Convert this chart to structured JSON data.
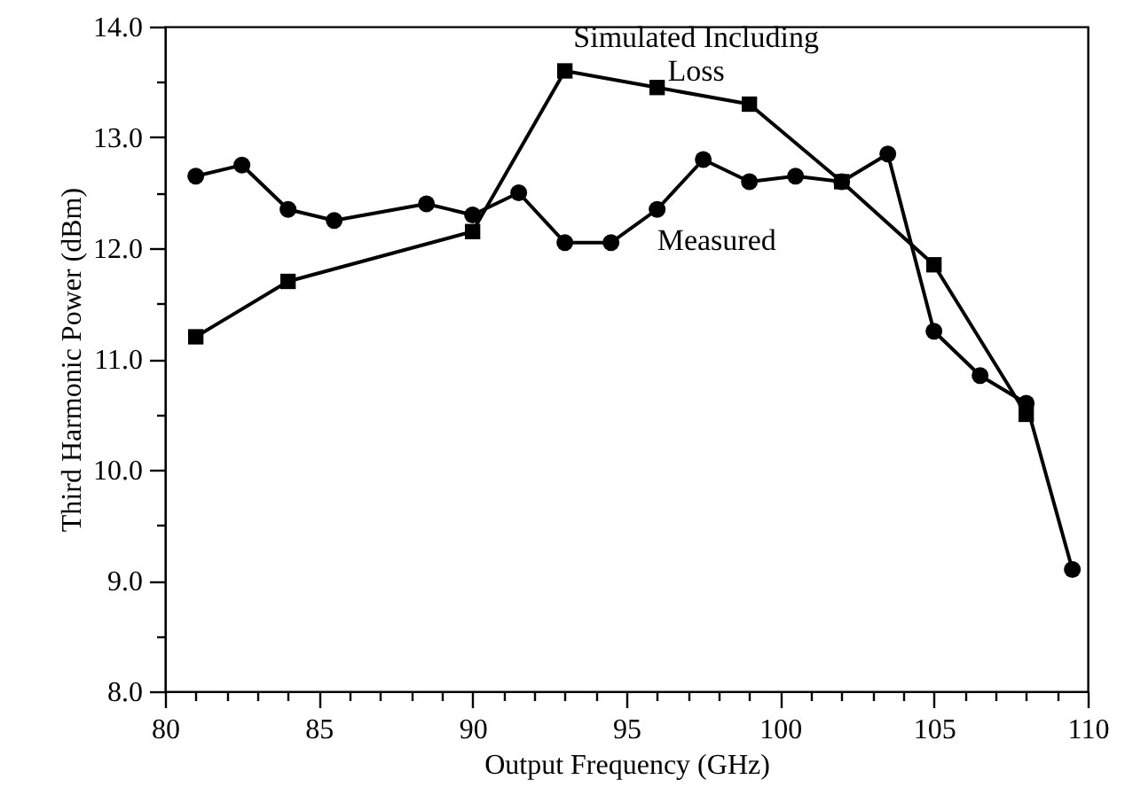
{
  "chart_data": {
    "type": "line",
    "xlabel": "Output Frequency (GHz)",
    "ylabel": "Third Harmonic Power (dBm)",
    "xlim": [
      80,
      110
    ],
    "ylim": [
      8,
      14
    ],
    "xticks": [
      80,
      {
        "value": 81,
        "label": null
      },
      {
        "value": 82,
        "label": null
      },
      {
        "value": 83,
        "label": null
      },
      {
        "value": 84,
        "label": null
      },
      85,
      {
        "value": 86,
        "label": null
      },
      {
        "value": 87,
        "label": null
      },
      {
        "value": 88,
        "label": null
      },
      {
        "value": 89,
        "label": null
      },
      90,
      {
        "value": 91,
        "label": null
      },
      {
        "value": 92,
        "label": null
      },
      {
        "value": 93,
        "label": null
      },
      {
        "value": 94,
        "label": null
      },
      95,
      {
        "value": 96,
        "label": null
      },
      {
        "value": 97,
        "label": null
      },
      {
        "value": 98,
        "label": null
      },
      {
        "value": 99,
        "label": null
      },
      100,
      {
        "value": 101,
        "label": null
      },
      {
        "value": 102,
        "label": null
      },
      {
        "value": 103,
        "label": null
      },
      {
        "value": 104,
        "label": null
      },
      105,
      {
        "value": 106,
        "label": null
      },
      {
        "value": 107,
        "label": null
      },
      {
        "value": 108,
        "label": null
      },
      {
        "value": 109,
        "label": null
      },
      110
    ],
    "yticks": [
      {
        "value": 8,
        "label": "8.0"
      },
      {
        "value": 8.5,
        "label": null
      },
      {
        "value": 9,
        "label": "9.0"
      },
      {
        "value": 9.5,
        "label": null
      },
      {
        "value": 10,
        "label": "10.0"
      },
      {
        "value": 10.5,
        "label": null
      },
      {
        "value": 11,
        "label": "11.0"
      },
      {
        "value": 11.5,
        "label": null
      },
      {
        "value": 12,
        "label": "12.0"
      },
      {
        "value": 12.5,
        "label": null
      },
      {
        "value": 13,
        "label": "13.0"
      },
      {
        "value": 13.5,
        "label": null
      },
      {
        "value": 14,
        "label": "14.0"
      }
    ],
    "grid": false,
    "line_style": "solid",
    "series": [
      {
        "name": "Simulated Including Loss",
        "color": "#000000",
        "marker": "square",
        "x": [
          81,
          84,
          90,
          93,
          96,
          99,
          102,
          105,
          108
        ],
        "values": [
          11.2,
          11.7,
          12.15,
          13.6,
          13.45,
          13.3,
          12.6,
          11.85,
          10.5
        ]
      },
      {
        "name": "Measured",
        "color": "#000000",
        "marker": "circle",
        "x": [
          81,
          82.5,
          84,
          85.5,
          88.5,
          90,
          91.5,
          93,
          94.5,
          96,
          97.5,
          99,
          100.5,
          102,
          103.5,
          105,
          106.5,
          108,
          109.5
        ],
        "values": [
          12.65,
          12.75,
          12.35,
          12.25,
          12.4,
          12.3,
          12.5,
          12.05,
          12.05,
          12.35,
          12.8,
          12.6,
          12.65,
          12.6,
          12.85,
          11.25,
          10.85,
          10.6,
          9.1
        ]
      }
    ]
  }
}
